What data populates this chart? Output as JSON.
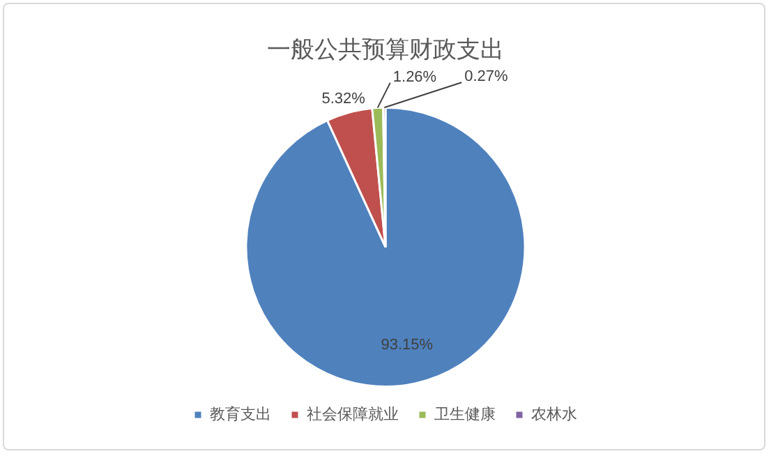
{
  "chart_data": {
    "type": "pie",
    "title": "一般公共预算财政支出",
    "categories": [
      "教育支出",
      "社会保障就业",
      "卫生健康",
      "农林水"
    ],
    "values": [
      93.15,
      5.32,
      1.26,
      0.27
    ],
    "colors": [
      "#4f81bd",
      "#c0504d",
      "#9bbb59",
      "#8064a2"
    ],
    "value_labels": [
      "93.15%",
      "5.32%",
      "1.26%",
      "0.27%"
    ],
    "legend": "bottom"
  }
}
